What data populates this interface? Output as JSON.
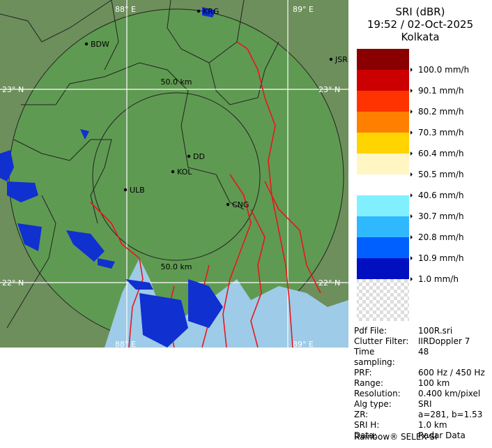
{
  "header": {
    "product": "SRI (dBR)",
    "datetime": "19:52 / 02-Oct-2025",
    "station": "Kolkata"
  },
  "map": {
    "cities": [
      "KRG",
      "BDW",
      "JSR",
      "DD",
      "KOL",
      "ULB",
      "CNG"
    ],
    "range_labels": [
      "50.0 km",
      "50.0 km"
    ],
    "lat_labels": [
      "23° N",
      "23° N",
      "22° N",
      "22° N"
    ],
    "lon_labels": [
      "88° E",
      "89° E",
      "88° E",
      "89° E"
    ]
  },
  "legend": {
    "items": [
      {
        "label": "100.0 mm/h",
        "color": "#8a0000"
      },
      {
        "label": "90.1 mm/h",
        "color": "#cc0000"
      },
      {
        "label": "80.2 mm/h",
        "color": "#ff3300"
      },
      {
        "label": "70.3 mm/h",
        "color": "#ff8000"
      },
      {
        "label": "60.4 mm/h",
        "color": "#ffd400"
      },
      {
        "label": "50.5 mm/h",
        "color": "#fff6c4"
      },
      {
        "label": "40.6 mm/h",
        "color": "#ffffff"
      },
      {
        "label": "30.7 mm/h",
        "color": "#80f0ff"
      },
      {
        "label": "20.8 mm/h",
        "color": "#30b8ff"
      },
      {
        "label": "10.9 mm/h",
        "color": "#0060ff"
      },
      {
        "label": "1.0 mm/h",
        "color": "#0010c0"
      }
    ]
  },
  "info": {
    "rows": [
      [
        "Pdf File:",
        "100R.sri"
      ],
      [
        "Clutter Filter:",
        "IIRDoppler 7"
      ],
      [
        "Time sampling:",
        "48"
      ],
      [
        "PRF:",
        "600 Hz / 450 Hz"
      ],
      [
        "Range:",
        "100 km"
      ],
      [
        "Resolution:",
        "0.400 km/pixel"
      ],
      [
        "Alg type:",
        "SRI"
      ],
      [
        "ZR:",
        "a=281, b=1.53"
      ],
      [
        "SRI H:",
        "1.0 km"
      ],
      [
        "Data:",
        "Radar Data"
      ]
    ],
    "footer": "Rainbow® SELEX-SI"
  }
}
